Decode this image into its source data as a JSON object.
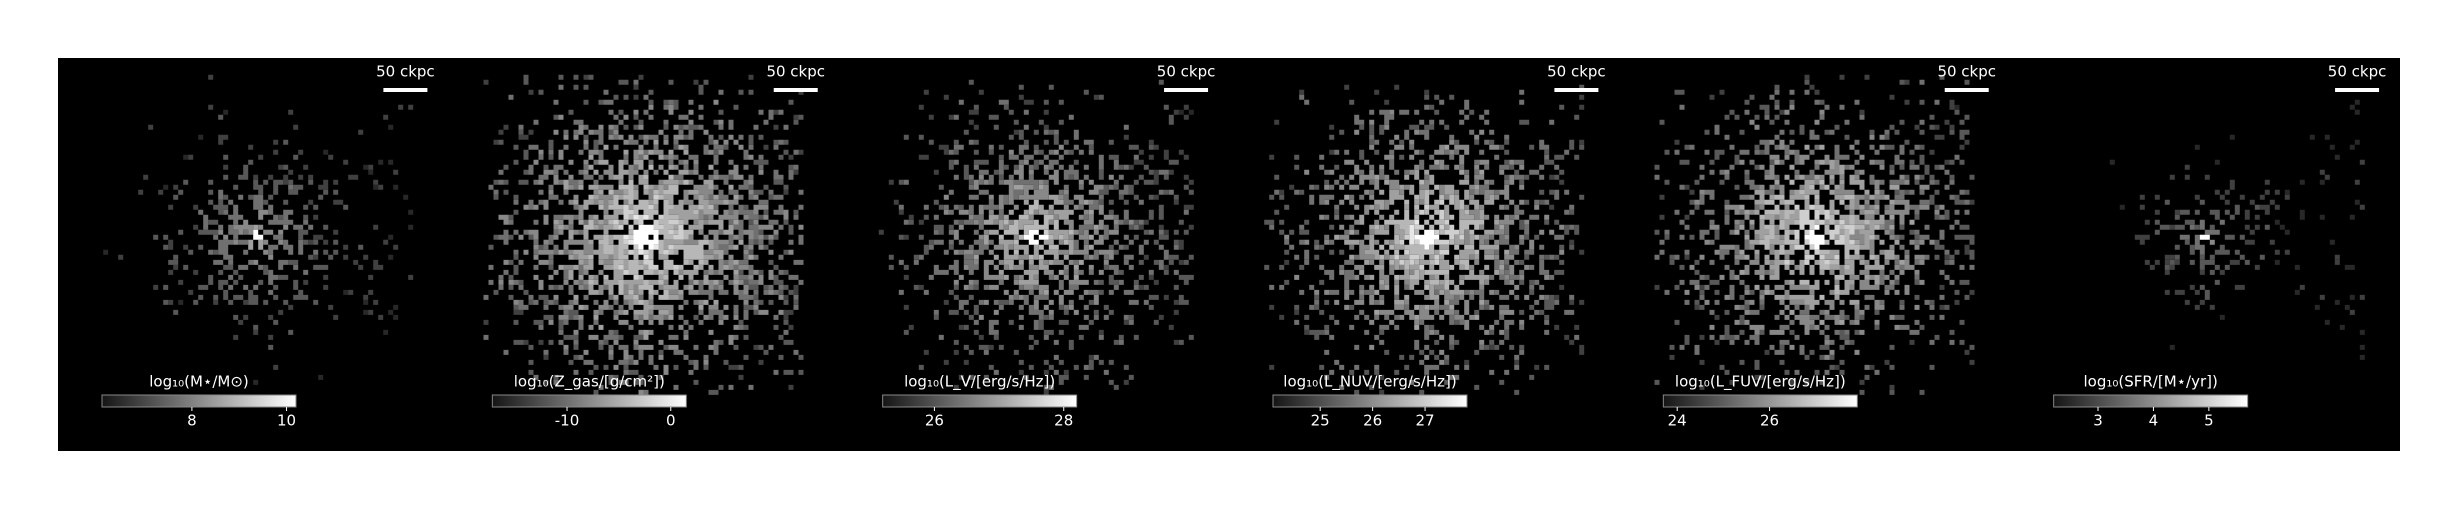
{
  "chart_data": [
    {
      "type": "image",
      "scale_label": "50 ckpc",
      "colorbar_label": "log₁₀(M⋆/M⊙)",
      "clim": [
        6.1,
        10.2
      ],
      "cticks": [
        8,
        10
      ]
    },
    {
      "type": "image",
      "scale_label": "50 ckpc",
      "colorbar_label": "log₁₀(Z_gas/[g/cm²])",
      "clim": [
        -17.2,
        1.5
      ],
      "cticks": [
        -10,
        0
      ]
    },
    {
      "type": "image",
      "scale_label": "50 ckpc",
      "colorbar_label": "log₁₀(L_V/[erg/s/Hz])",
      "clim": [
        25.2,
        28.2
      ],
      "cticks": [
        26,
        28
      ]
    },
    {
      "type": "image",
      "scale_label": "50 ckpc",
      "colorbar_label": "log₁₀(L_NUV/[erg/s/Hz])",
      "clim": [
        24.1,
        27.8
      ],
      "cticks": [
        25,
        26,
        27
      ]
    },
    {
      "type": "image",
      "scale_label": "50 ckpc",
      "colorbar_label": "log₁₀(L_FUV/[erg/s/Hz])",
      "clim": [
        23.7,
        27.9
      ],
      "cticks": [
        24,
        26
      ]
    },
    {
      "type": "image",
      "scale_label": "50 ckpc",
      "colorbar_label": "log₁₀(SFR/[M⋆/yr])",
      "clim": [
        2.2,
        5.7
      ],
      "cticks": [
        3,
        4,
        5
      ]
    }
  ]
}
